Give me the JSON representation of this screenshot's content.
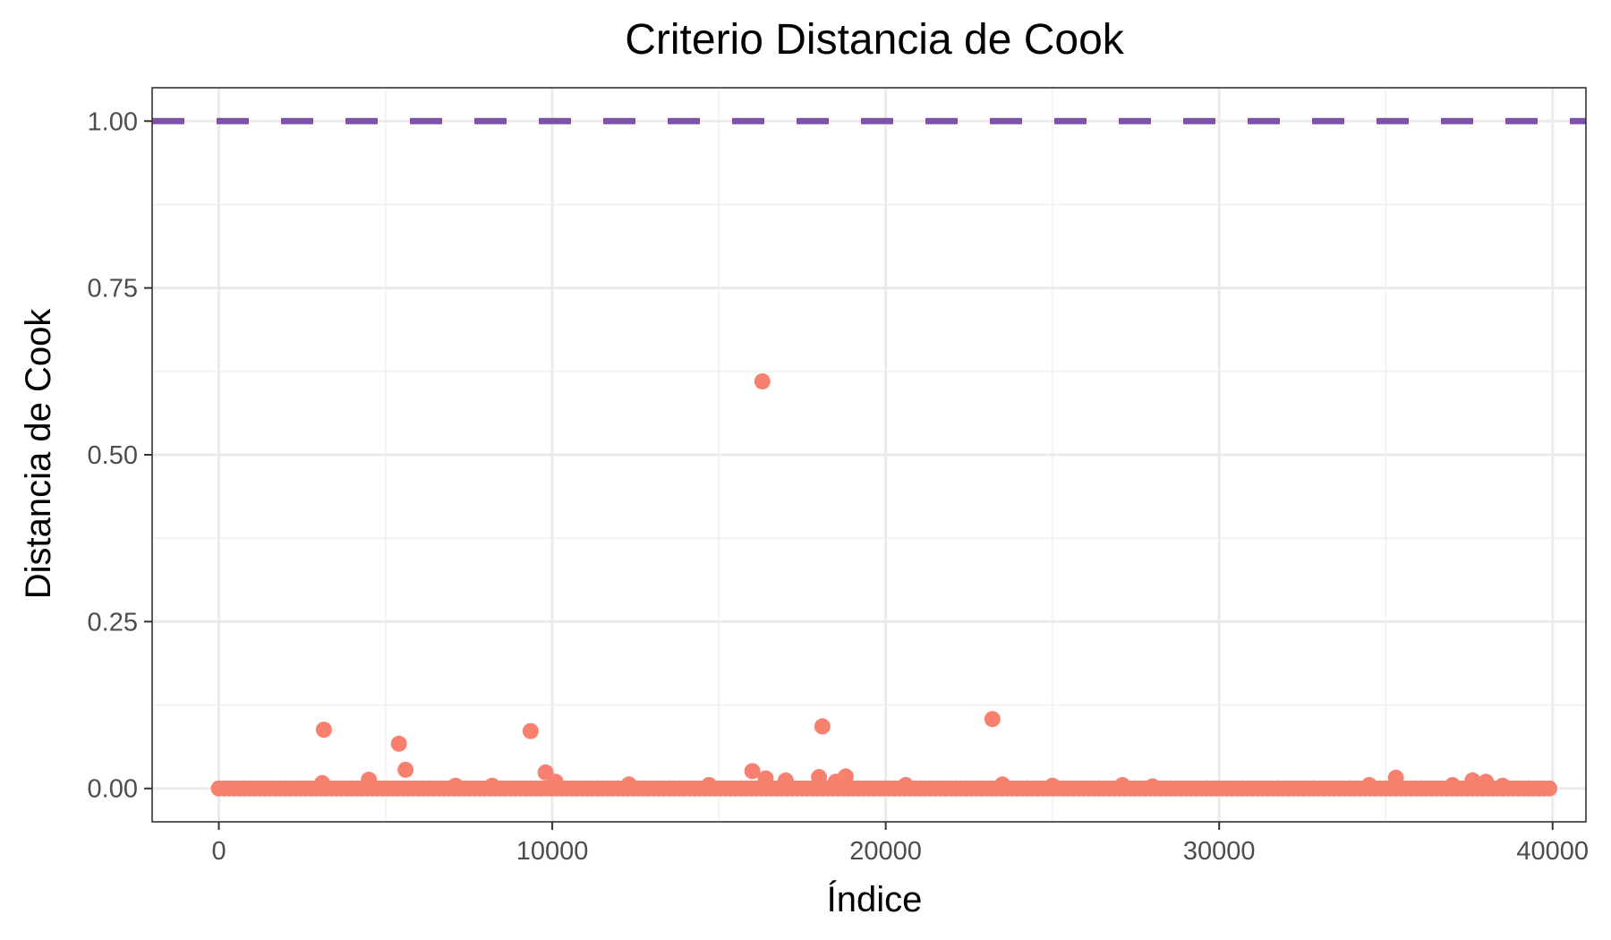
{
  "chart_data": {
    "type": "scatter",
    "title": "Criterio Distancia de Cook",
    "xlabel": "Índice",
    "ylabel": "Distancia de Cook",
    "xlim": [
      -2000,
      41000
    ],
    "ylim": [
      -0.05,
      1.05
    ],
    "x_ticks": [
      0,
      10000,
      20000,
      30000,
      40000
    ],
    "x_tick_labels": [
      "0",
      "10000",
      "20000",
      "30000",
      "40000"
    ],
    "y_ticks": [
      0,
      0.25,
      0.5,
      0.75,
      1.0
    ],
    "y_tick_labels": [
      "0.00",
      "0.25",
      "0.50",
      "0.75",
      "1.00"
    ],
    "grid": true,
    "reference_line": {
      "y": 1.0,
      "style": "dashed",
      "color": "#7b52a6"
    },
    "point_color": "#f8806f",
    "baseline_band": {
      "x_from": 0,
      "x_to": 39900,
      "y": 0.0
    },
    "points": [
      {
        "x": 3150,
        "y": 0.088
      },
      {
        "x": 3100,
        "y": 0.008
      },
      {
        "x": 4500,
        "y": 0.013
      },
      {
        "x": 5400,
        "y": 0.067
      },
      {
        "x": 5600,
        "y": 0.028
      },
      {
        "x": 7100,
        "y": 0.004
      },
      {
        "x": 8200,
        "y": 0.004
      },
      {
        "x": 9350,
        "y": 0.086
      },
      {
        "x": 9800,
        "y": 0.024
      },
      {
        "x": 10100,
        "y": 0.01
      },
      {
        "x": 12300,
        "y": 0.006
      },
      {
        "x": 14700,
        "y": 0.005
      },
      {
        "x": 16000,
        "y": 0.026
      },
      {
        "x": 16300,
        "y": 0.61
      },
      {
        "x": 16400,
        "y": 0.015
      },
      {
        "x": 17000,
        "y": 0.012
      },
      {
        "x": 18000,
        "y": 0.017
      },
      {
        "x": 18100,
        "y": 0.093
      },
      {
        "x": 18500,
        "y": 0.01
      },
      {
        "x": 18800,
        "y": 0.018
      },
      {
        "x": 20600,
        "y": 0.005
      },
      {
        "x": 23200,
        "y": 0.104
      },
      {
        "x": 23500,
        "y": 0.006
      },
      {
        "x": 25000,
        "y": 0.004
      },
      {
        "x": 27100,
        "y": 0.005
      },
      {
        "x": 28000,
        "y": 0.003
      },
      {
        "x": 34500,
        "y": 0.005
      },
      {
        "x": 35300,
        "y": 0.016
      },
      {
        "x": 37000,
        "y": 0.005
      },
      {
        "x": 37600,
        "y": 0.012
      },
      {
        "x": 38000,
        "y": 0.01
      },
      {
        "x": 38500,
        "y": 0.004
      }
    ]
  }
}
